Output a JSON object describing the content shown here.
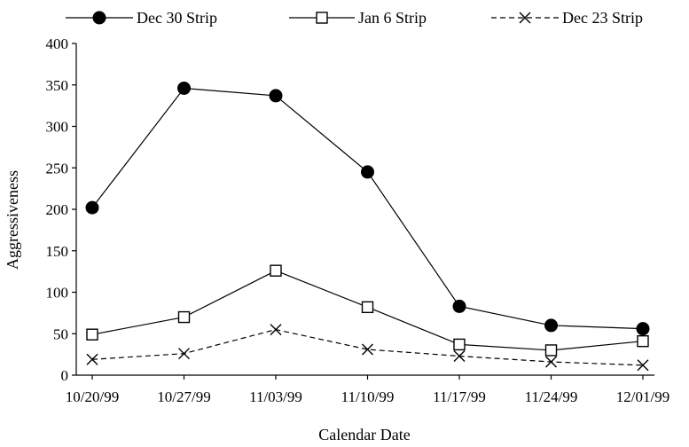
{
  "chart_data": {
    "type": "line",
    "title": "",
    "xlabel": "Calendar Date",
    "ylabel": "Aggressiveness",
    "categories": [
      "10/20/99",
      "10/27/99",
      "11/03/99",
      "11/10/99",
      "11/17/99",
      "11/24/99",
      "12/01/99"
    ],
    "ylim": [
      0,
      400
    ],
    "yticks": [
      0,
      50,
      100,
      150,
      200,
      250,
      300,
      350,
      400
    ],
    "grid": false,
    "legend_position": "top",
    "series": [
      {
        "name": "Dec 30 Strip",
        "marker": "filled-circle",
        "line": "solid",
        "color": "#000000",
        "values": [
          202,
          346,
          337,
          245,
          83,
          60,
          56
        ]
      },
      {
        "name": "Jan 6 Strip",
        "marker": "open-square",
        "line": "solid",
        "color": "#000000",
        "values": [
          49,
          70,
          126,
          82,
          37,
          30,
          41
        ]
      },
      {
        "name": "Dec 23 Strip",
        "marker": "x",
        "line": "dashed",
        "color": "#000000",
        "values": [
          19,
          26,
          55,
          31,
          23,
          16,
          12
        ]
      }
    ]
  }
}
